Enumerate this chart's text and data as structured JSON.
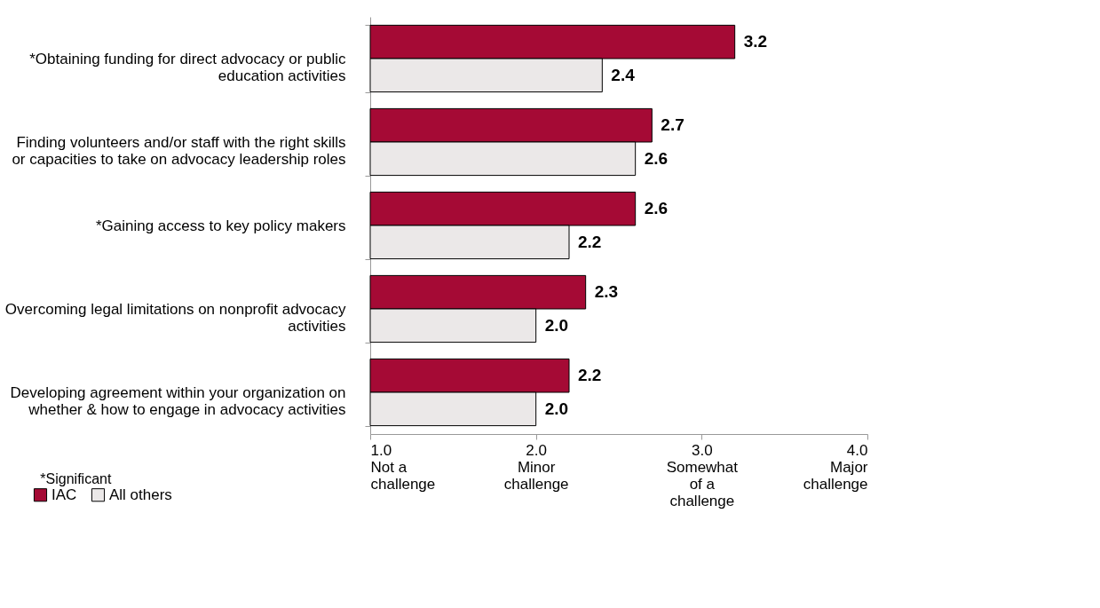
{
  "chart_data": {
    "type": "bar",
    "orientation": "horizontal",
    "categories": [
      "*Obtaining funding for direct advocacy or public education activities",
      "Finding volunteers and/or staff with the right skills or capacities to take on advocacy leadership roles",
      "*Gaining access to key policy makers",
      "Overcoming legal limitations on nonprofit advocacy activities",
      "Developing agreement within your organization on whether & how to engage in advocacy activities"
    ],
    "series": [
      {
        "name": "IAC",
        "color": "#a50a35",
        "values": [
          3.2,
          2.7,
          2.6,
          2.3,
          2.2
        ],
        "value_labels": [
          "3.2",
          "2.7",
          "2.6",
          "2.3",
          "2.2"
        ]
      },
      {
        "name": "All others",
        "color": "#ebe8e8",
        "values": [
          2.4,
          2.6,
          2.2,
          2.0,
          2.0
        ],
        "value_labels": [
          "2.4",
          "2.6",
          "2.2",
          "2.0",
          "2.0"
        ]
      }
    ],
    "xlim": [
      1,
      4
    ],
    "xticks": [
      {
        "value": 1,
        "label": "1.0\nNot a\nchallenge"
      },
      {
        "value": 2,
        "label": "2.0\nMinor\nchallenge"
      },
      {
        "value": 3,
        "label": "3.0\nSomewhat\nof a\nchallenge"
      },
      {
        "value": 4,
        "label": "4.0\nMajor\nchallenge"
      }
    ],
    "grid": false,
    "legend": "bottom left",
    "annotations": [
      "*Significant"
    ]
  }
}
